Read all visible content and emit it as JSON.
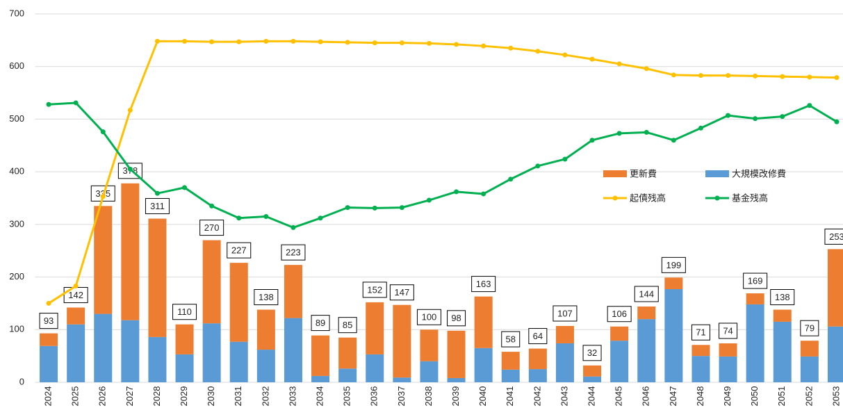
{
  "chart_data": {
    "type": "bar+line",
    "categories": [
      "2024",
      "2025",
      "2026",
      "2027",
      "2028",
      "2029",
      "2030",
      "2031",
      "2032",
      "2033",
      "2034",
      "2035",
      "2036",
      "2037",
      "2038",
      "2039",
      "2040",
      "2041",
      "2042",
      "2043",
      "2044",
      "2045",
      "2046",
      "2047",
      "2048",
      "2049",
      "2050",
      "2051",
      "2052",
      "2053"
    ],
    "series": [
      {
        "name": "大規模改修費",
        "type": "bar",
        "color": "#5b9bd5",
        "values": [
          69,
          110,
          130,
          118,
          86,
          53,
          112,
          77,
          62,
          122,
          12,
          26,
          53,
          9,
          40,
          8,
          65,
          24,
          25,
          74,
          11,
          79,
          120,
          177,
          50,
          49,
          148,
          115,
          49,
          106
        ]
      },
      {
        "name": "更新費",
        "type": "bar",
        "color": "#ed7d31",
        "values": [
          24,
          32,
          205,
          260,
          225,
          57,
          158,
          150,
          76,
          101,
          77,
          59,
          99,
          138,
          60,
          90,
          98,
          34,
          39,
          33,
          21,
          27,
          24,
          22,
          21,
          25,
          21,
          23,
          30,
          147
        ]
      },
      {
        "name": "起債残高",
        "type": "line",
        "color": "#ffc000",
        "values": [
          150,
          183,
          353,
          517,
          648,
          648,
          647,
          647,
          648,
          648,
          647,
          646,
          645,
          645,
          644,
          642,
          639,
          635,
          629,
          622,
          614,
          605,
          596,
          584,
          583,
          583,
          582,
          581,
          580,
          579
        ]
      },
      {
        "name": "基金残高",
        "type": "line",
        "color": "#00b050",
        "values": [
          528,
          531,
          476,
          405,
          359,
          370,
          335,
          312,
          315,
          294,
          312,
          332,
          331,
          332,
          346,
          362,
          358,
          386,
          411,
          424,
          460,
          473,
          475,
          460,
          483,
          507,
          501,
          505,
          526,
          495
        ]
      }
    ],
    "total_labels": [
      93,
      142,
      335,
      378,
      311,
      110,
      270,
      227,
      138,
      223,
      89,
      85,
      152,
      147,
      100,
      98,
      163,
      58,
      64,
      107,
      32,
      106,
      144,
      199,
      71,
      74,
      169,
      138,
      79,
      253
    ],
    "ylim": [
      0,
      700
    ],
    "yticks": [
      0,
      100,
      200,
      300,
      400,
      500,
      600,
      700
    ],
    "grid": true
  }
}
